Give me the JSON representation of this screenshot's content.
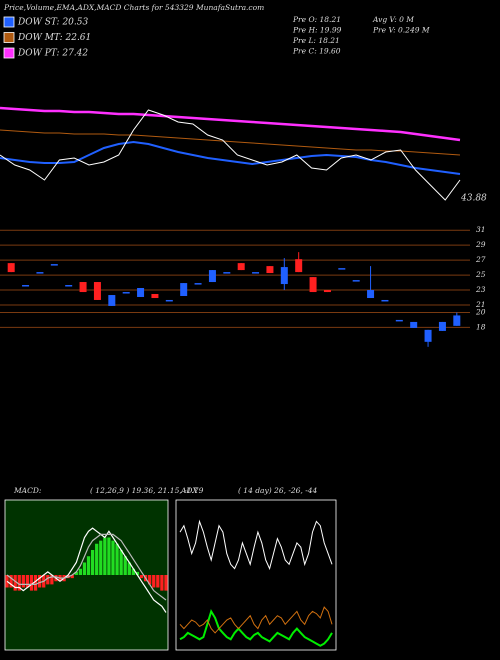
{
  "header": {
    "title": "Price,Volume,EMA,ADX,MACD Charts for 543329  MunafaSutra.com"
  },
  "legend": [
    {
      "label": "DOW ST: 20.53",
      "color": "#2060ff"
    },
    {
      "label": "DOW MT: 22.61",
      "color": "#b05a10"
    },
    {
      "label": "DOW PT: 27.42",
      "color": "#ff30ff"
    }
  ],
  "info": [
    "Pre  O: 18.21",
    "Pre  H: 19.99",
    "Pre  L: 18.21",
    "Pre  C: 19.60",
    "Avg V: 0  M",
    "Pre  V: 0.249 M"
  ],
  "chart_data": [
    {
      "type": "line",
      "ylim": [
        0,
        110
      ],
      "price_label": 43.88,
      "series": [
        {
          "name": "EMA long",
          "color": "#ff30ff",
          "values": [
            102,
            101,
            100,
            99,
            99,
            98,
            98,
            97,
            96,
            96,
            95,
            94,
            93,
            92,
            91,
            90,
            89,
            88,
            87,
            86,
            85,
            84,
            83,
            82,
            81,
            80,
            79,
            78,
            76,
            74,
            72,
            70
          ]
        },
        {
          "name": "EMA mid",
          "color": "#b05a10",
          "values": [
            80,
            79,
            78,
            77,
            77,
            76,
            76,
            76,
            75,
            75,
            74,
            73,
            72,
            71,
            70,
            69,
            68,
            67,
            66,
            65,
            64,
            63,
            62,
            61,
            60,
            60,
            59,
            59,
            58,
            57,
            56,
            55
          ]
        },
        {
          "name": "EMA short",
          "color": "#2060ff",
          "values": [
            52,
            50,
            48,
            47,
            47,
            48,
            55,
            62,
            66,
            68,
            66,
            62,
            58,
            55,
            52,
            50,
            48,
            46,
            48,
            50,
            52,
            54,
            55,
            54,
            53,
            50,
            48,
            45,
            42,
            40,
            38,
            36
          ]
        },
        {
          "name": "Price",
          "color": "#ffffff",
          "values": [
            55,
            45,
            40,
            30,
            50,
            52,
            45,
            48,
            55,
            80,
            100,
            95,
            88,
            86,
            75,
            70,
            55,
            50,
            45,
            48,
            55,
            42,
            40,
            52,
            55,
            50,
            58,
            60,
            40,
            25,
            10,
            30
          ]
        }
      ]
    },
    {
      "type": "candlestick",
      "ylim": [
        12.3,
        31.7
      ],
      "yticks": [
        31,
        29,
        27,
        25,
        23,
        21,
        20,
        18
      ],
      "up_color": "#2060ff",
      "down_color": "#ff2020",
      "grid_color": "#7a3a10",
      "open": [
        26.6,
        23.67,
        25.4,
        26.47,
        23.67,
        24.07,
        24.07,
        20.87,
        22.73,
        22.07,
        22.47,
        21.67,
        22.2,
        23.93,
        24.07,
        25.4,
        26.6,
        25.4,
        26.2,
        23.8,
        27.13,
        24.73,
        23.0,
        25.93,
        24.33,
        21.93,
        21.67,
        19.0,
        17.93,
        16.07,
        17.53,
        18.21
      ],
      "high": [
        26.6,
        23.67,
        25.4,
        26.47,
        23.67,
        24.07,
        24.07,
        22.33,
        22.73,
        23.27,
        22.47,
        21.67,
        23.93,
        23.93,
        25.67,
        25.4,
        26.6,
        25.4,
        26.2,
        27.27,
        28.07,
        24.73,
        23.0,
        25.93,
        24.33,
        26.2,
        21.67,
        19.0,
        18.73,
        17.67,
        18.73,
        19.99
      ],
      "low": [
        25.4,
        23.67,
        25.4,
        26.47,
        23.67,
        22.73,
        21.67,
        20.87,
        22.73,
        22.07,
        21.93,
        21.67,
        22.2,
        23.93,
        24.07,
        25.4,
        25.67,
        25.4,
        25.27,
        23.0,
        25.4,
        22.73,
        22.73,
        25.93,
        24.33,
        21.93,
        21.67,
        19.0,
        17.93,
        15.4,
        17.53,
        18.21
      ],
      "close": [
        25.4,
        23.67,
        25.4,
        26.47,
        23.67,
        22.73,
        21.67,
        22.33,
        22.73,
        23.27,
        21.93,
        21.67,
        23.93,
        23.93,
        25.67,
        25.4,
        25.67,
        25.4,
        25.27,
        26.07,
        25.4,
        22.73,
        22.73,
        25.93,
        24.33,
        23.0,
        21.67,
        19.0,
        18.73,
        17.67,
        18.73,
        19.6
      ]
    },
    {
      "type": "macd",
      "label": "MACD:",
      "params": "( 12,26,9 ) 19.36,  21.15,  -1.79",
      "ylim": [
        -12,
        12
      ],
      "background": "#003300",
      "series": [
        {
          "name": "histogram",
          "values": [
            -2,
            -2,
            -2.5,
            -2.5,
            -2,
            -2,
            -2.5,
            -2.5,
            -2,
            -2,
            -1.5,
            -1.5,
            -1,
            -1,
            -1,
            -0.5,
            -0.5,
            0.5,
            1,
            2,
            3,
            4,
            5,
            5.5,
            6,
            6,
            5.5,
            5,
            4,
            3,
            2,
            1,
            0.5,
            -0.5,
            -1,
            -1.5,
            -2,
            -2,
            -2.5,
            -2.5
          ]
        },
        {
          "name": "macd",
          "color": "#ffffff",
          "values": [
            -1,
            -1.5,
            -2,
            -2,
            -2.5,
            -2,
            -1.5,
            -1,
            -0.5,
            0,
            0.5,
            0,
            -0.5,
            -1,
            -0.5,
            0,
            1,
            2,
            4,
            6,
            7,
            7.5,
            7,
            6.5,
            6,
            7,
            6,
            5,
            4,
            3,
            2,
            1,
            0,
            -1,
            -2,
            -3,
            -4,
            -4.5,
            -5,
            -6
          ]
        },
        {
          "name": "signal",
          "color": "#bbbbbb",
          "values": [
            0,
            -0.5,
            -1,
            -1.5,
            -1.5,
            -1.5,
            -1.5,
            -1.5,
            -1.2,
            -1,
            -0.5,
            -0.3,
            -0.3,
            -0.5,
            -0.5,
            -0.3,
            0,
            0.5,
            1.5,
            3,
            4.5,
            5.5,
            6,
            6.5,
            6.5,
            6.5,
            6.5,
            6,
            5.5,
            4.5,
            3.5,
            2.5,
            1.5,
            0.5,
            -0.5,
            -1.5,
            -2.5,
            -3,
            -3.5,
            -4
          ]
        }
      ]
    },
    {
      "type": "adx",
      "label": "ADX",
      "params": "( 14  day) 26,  -26,  -44",
      "ylim": [
        0,
        70
      ],
      "series": [
        {
          "name": "adx",
          "color": "#ffffff",
          "values": [
            55,
            58,
            52,
            45,
            50,
            60,
            55,
            48,
            42,
            50,
            58,
            55,
            45,
            40,
            38,
            42,
            50,
            45,
            40,
            48,
            55,
            50,
            42,
            38,
            45,
            52,
            48,
            42,
            40,
            45,
            50,
            48,
            40,
            45,
            55,
            60,
            58,
            50,
            45,
            40
          ]
        },
        {
          "name": "plus",
          "color": "#00ee00",
          "values": [
            5,
            6,
            8,
            7,
            6,
            5,
            6,
            12,
            18,
            15,
            10,
            8,
            6,
            5,
            8,
            10,
            8,
            6,
            5,
            7,
            8,
            6,
            5,
            4,
            6,
            8,
            7,
            6,
            5,
            8,
            10,
            8,
            6,
            5,
            4,
            3,
            2,
            3,
            5,
            8
          ]
        },
        {
          "name": "minus",
          "color": "#d07010",
          "values": [
            12,
            10,
            12,
            14,
            13,
            11,
            12,
            14,
            10,
            8,
            10,
            12,
            14,
            15,
            12,
            10,
            12,
            14,
            16,
            12,
            10,
            14,
            16,
            12,
            14,
            16,
            15,
            12,
            14,
            16,
            18,
            14,
            12,
            16,
            18,
            17,
            15,
            20,
            18,
            12
          ]
        }
      ]
    }
  ]
}
